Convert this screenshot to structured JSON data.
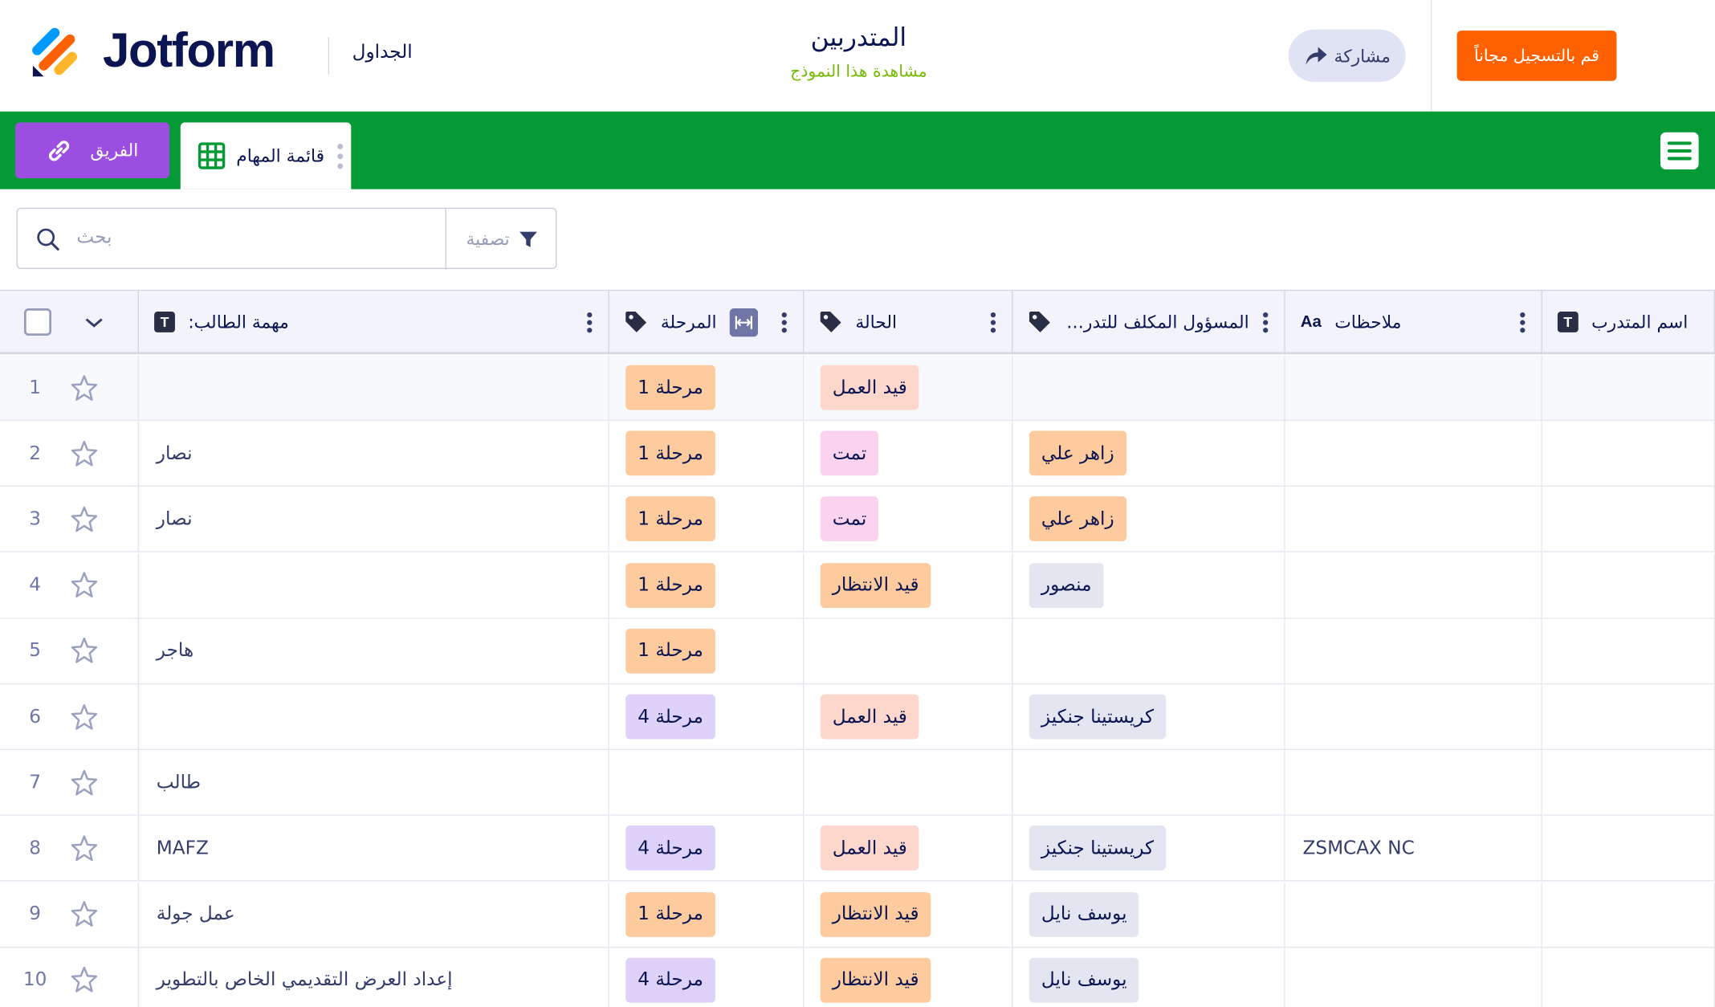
{
  "header": {
    "logo": "Jotform",
    "section": "الجداول",
    "title": "المتدربين",
    "subtitle": "مشاهدة هذا النموذج",
    "share": "مشاركة",
    "signup": "قم بالتسجيل مجاناً"
  },
  "tabs": {
    "team": "الفريق",
    "tasks": "قائمة المهام"
  },
  "toolbar": {
    "search": "بحث",
    "filter": "تصفية"
  },
  "table": {
    "columns": [
      {
        "key": "task",
        "label": "مهمة الطالب:",
        "icon": "T"
      },
      {
        "key": "stage",
        "label": "المرحلة"
      },
      {
        "key": "status",
        "label": "الحالة"
      },
      {
        "key": "assignee",
        "label": "المسؤول المكلف للتدريب"
      },
      {
        "key": "notes",
        "label": "ملاحظات",
        "icon": "Aa"
      },
      {
        "key": "name",
        "label": "اسم المتدرب",
        "icon": "T"
      }
    ],
    "rows": [
      {
        "number": 1,
        "stage": {
          "text": "مرحلة 1",
          "color": "#fdcb9d"
        },
        "status": {
          "text": "قيد العمل",
          "color": "#fdd6cc"
        }
      },
      {
        "number": 2,
        "task": "نصار",
        "stage": {
          "text": "مرحلة 1",
          "color": "#fdcb9d"
        },
        "status": {
          "text": "تمت",
          "color": "#fbd3ee"
        },
        "assignee": {
          "text": "زاهر علي",
          "color": "#fdcb9d"
        }
      },
      {
        "number": 3,
        "task": "نصار",
        "stage": {
          "text": "مرحلة 1",
          "color": "#fdcb9d"
        },
        "status": {
          "text": "تمت",
          "color": "#fbd3ee"
        },
        "assignee": {
          "text": "زاهر علي",
          "color": "#fdcb9d"
        }
      },
      {
        "number": 4,
        "stage": {
          "text": "مرحلة 1",
          "color": "#fdcb9d"
        },
        "status": {
          "text": "قيد الانتظار",
          "color": "#fdcb9d"
        },
        "assignee": {
          "text": "منصور",
          "color": "#e3e6f0"
        }
      },
      {
        "number": 5,
        "task": "هاجر",
        "stage": {
          "text": "مرحلة 1",
          "color": "#fdcb9d"
        }
      },
      {
        "number": 6,
        "stage": {
          "text": "مرحلة 4",
          "color": "#ded2fb"
        },
        "status": {
          "text": "قيد العمل",
          "color": "#fdd6cc"
        },
        "assignee": {
          "text": "كريستينا جنكيز",
          "color": "#e3e6f0"
        }
      },
      {
        "number": 7,
        "task": "طالب"
      },
      {
        "number": 8,
        "task": "MAFZ",
        "stage": {
          "text": "مرحلة 4",
          "color": "#ded2fb"
        },
        "status": {
          "text": "قيد العمل",
          "color": "#fdd6cc"
        },
        "assignee": {
          "text": "كريستينا جنكيز",
          "color": "#e3e6f0"
        },
        "notes": "ZSMCAX NC"
      },
      {
        "number": 9,
        "task": "عمل جولة",
        "stage": {
          "text": "مرحلة 1",
          "color": "#fdcb9d"
        },
        "status": {
          "text": "قيد الانتظار",
          "color": "#fdcb9d"
        },
        "assignee": {
          "text": "يوسف نايل",
          "color": "#e3e6f0"
        }
      },
      {
        "number": 10,
        "task": "إعداد العرض التقديمي الخاص بالتطوير",
        "stage": {
          "text": "مرحلة 4",
          "color": "#ded2fb"
        },
        "status": {
          "text": "قيد الانتظار",
          "color": "#fdcb9d"
        },
        "assignee": {
          "text": "يوسف نايل",
          "color": "#e3e6f0"
        }
      }
    ]
  }
}
